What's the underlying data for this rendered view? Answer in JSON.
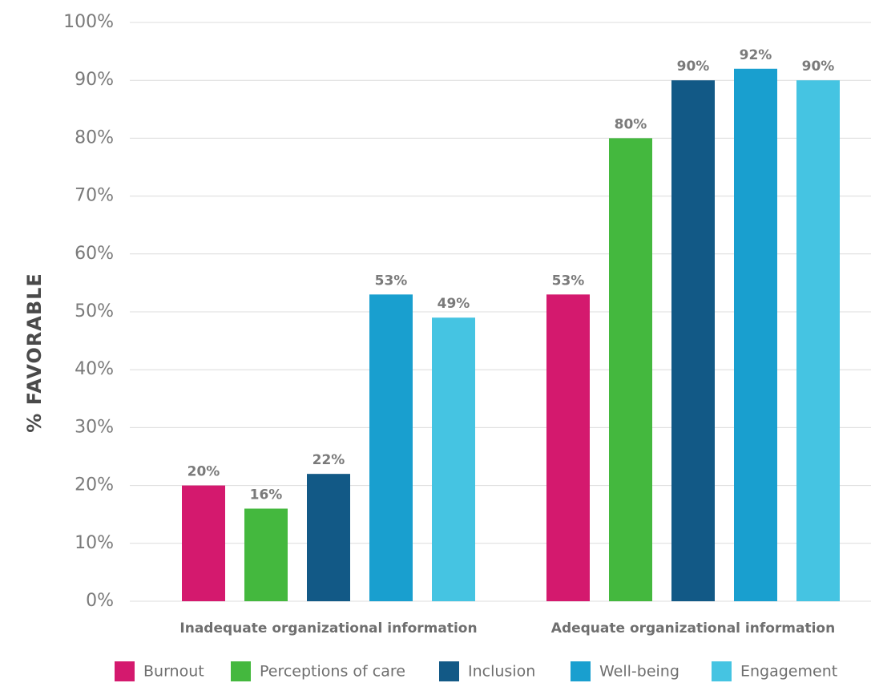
{
  "chart_data": {
    "type": "bar",
    "title": "",
    "xlabel": "",
    "ylabel": "% FAVORABLE",
    "ylim": [
      0,
      100
    ],
    "y_ticks": [
      "0%",
      "10%",
      "20%",
      "30%",
      "40%",
      "50%",
      "60%",
      "70%",
      "80%",
      "90%",
      "100%"
    ],
    "grid": true,
    "legend_position": "bottom",
    "categories": [
      "Inadequate organizational information",
      "Adequate organizational information"
    ],
    "series": [
      {
        "name": "Burnout",
        "color": "#d4196e",
        "values": [
          20,
          53
        ],
        "labels": [
          "20%",
          "53%"
        ]
      },
      {
        "name": "Perceptions of care",
        "color": "#44b83e",
        "values": [
          16,
          80
        ],
        "labels": [
          "16%",
          "80%"
        ]
      },
      {
        "name": "Inclusion",
        "color": "#125986",
        "values": [
          22,
          90
        ],
        "labels": [
          "22%",
          "90%"
        ]
      },
      {
        "name": "Well-being",
        "color": "#199fcf",
        "values": [
          53,
          92
        ],
        "labels": [
          "53%",
          "92%"
        ]
      },
      {
        "name": "Engagement",
        "color": "#45c4e2",
        "values": [
          49,
          90
        ],
        "labels": [
          "49%",
          "90%"
        ]
      }
    ]
  }
}
